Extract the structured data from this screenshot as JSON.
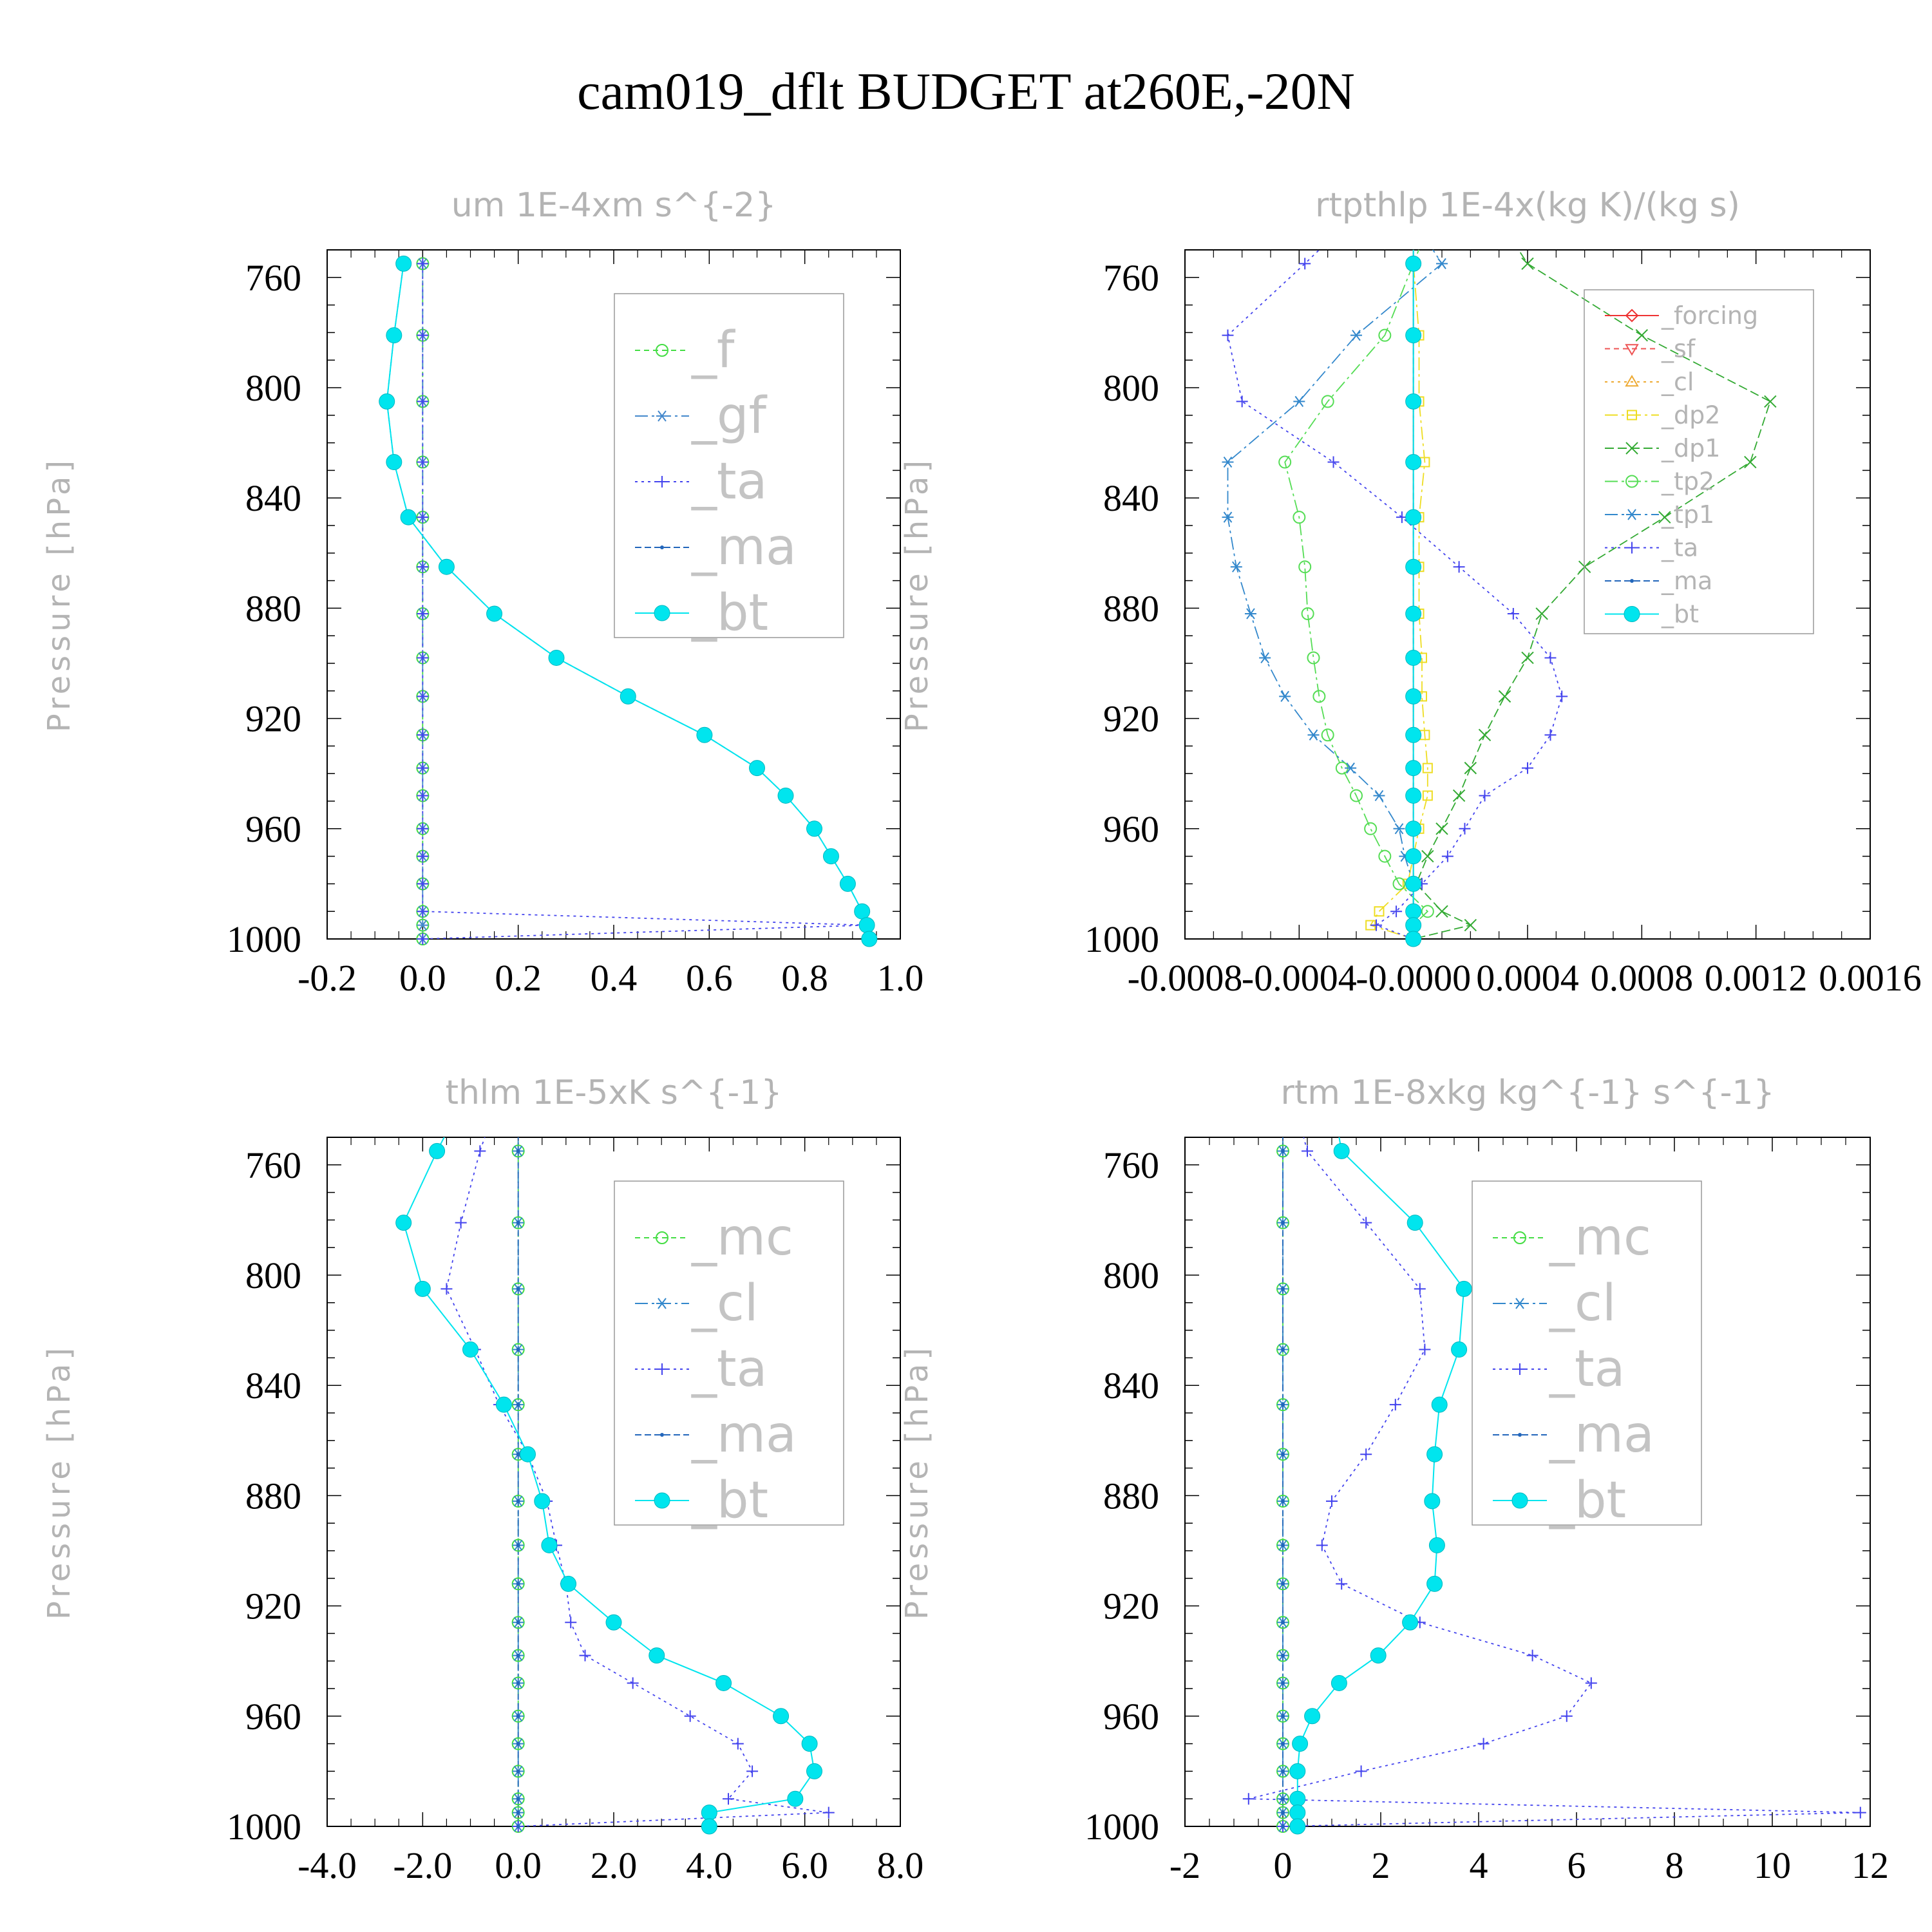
{
  "title": "cam019_dflt  BUDGET at260E,-20N",
  "chart_data": [
    {
      "type": "line",
      "title": "um   1E-4xm s^{-2}",
      "ylabel": "Pressure [hPa]",
      "xlim": [
        -0.2,
        1.0
      ],
      "ylim": [
        1000,
        750
      ],
      "xticks": [
        "-0.2",
        "0.0",
        "0.2",
        "0.4",
        "0.6",
        "0.8",
        "1.0"
      ],
      "xtick_values": [
        -0.2,
        0.0,
        0.2,
        0.4,
        0.6,
        0.8,
        1.0
      ],
      "yticks": [
        "760",
        "800",
        "840",
        "880",
        "920",
        "960",
        "1000"
      ],
      "ytick_values": [
        760,
        800,
        840,
        880,
        920,
        960,
        1000
      ],
      "legend_size": "large",
      "legend_entries": [
        "_f",
        "_gf",
        "_ta",
        "_ma",
        "_bt"
      ],
      "levels": [
        755,
        781,
        805,
        827,
        847,
        865,
        882,
        898,
        912,
        926,
        938,
        948,
        960,
        970,
        980,
        990,
        995,
        1000
      ],
      "series": [
        {
          "name": "_f",
          "color": "#44dd44",
          "dash": "8 6",
          "marker": "circle-open",
          "values": [
            0,
            0,
            0,
            0,
            0,
            0,
            0,
            0,
            0,
            0,
            0,
            0,
            0,
            0,
            0,
            0,
            0,
            0
          ]
        },
        {
          "name": "_gf",
          "color": "#4488cc",
          "dash": "20 6 4 6",
          "marker": "asterisk",
          "values": [
            0,
            0,
            0,
            0,
            0,
            0,
            0,
            0,
            0,
            0,
            0,
            0,
            0,
            0,
            0,
            0,
            0,
            0
          ]
        },
        {
          "name": "_ta",
          "color": "#4444ee",
          "dash": "4 6",
          "marker": "plus",
          "values": [
            0,
            0,
            0,
            0,
            0,
            0,
            0,
            0,
            0,
            0,
            0,
            0,
            0,
            0,
            0,
            0,
            0.93,
            0
          ]
        },
        {
          "name": "_ma",
          "color": "#2266bb",
          "dash": "10 5",
          "marker": "dot",
          "values": [
            -0.04,
            -0.06,
            -0.075,
            -0.06,
            -0.03,
            0.05,
            0.15,
            0.28,
            0.43,
            0.59,
            0.7,
            0.76,
            0.82,
            0.855,
            0.89,
            0.92,
            0.93,
            0.935
          ]
        },
        {
          "name": "_bt",
          "color": "#00e5ee",
          "dash": "",
          "marker": "filled",
          "values": [
            -0.04,
            -0.06,
            -0.075,
            -0.06,
            -0.03,
            0.05,
            0.15,
            0.28,
            0.43,
            0.59,
            0.7,
            0.76,
            0.82,
            0.855,
            0.89,
            0.92,
            0.93,
            0.935
          ]
        }
      ]
    },
    {
      "type": "line",
      "title": "rtpthlp   1E-4x(kg K)/(kg s)",
      "ylabel": "Pressure [hPa]",
      "xlim": [
        -0.0008,
        0.0016
      ],
      "ylim": [
        1000,
        750
      ],
      "xticks": [
        "-0.0008",
        "-0.0004",
        "-0.0000",
        "0.0004",
        "0.0008",
        "0.0012",
        "0.0016"
      ],
      "xtick_values": [
        -0.0008,
        -0.0004,
        0.0,
        0.0004,
        0.0008,
        0.0012,
        0.0016
      ],
      "yticks": [
        "760",
        "800",
        "840",
        "880",
        "920",
        "960",
        "1000"
      ],
      "ytick_values": [
        760,
        800,
        840,
        880,
        920,
        960,
        1000
      ],
      "legend_size": "small",
      "legend_entries": [
        "_forcing",
        "_sf",
        "_cl",
        "_dp2",
        "_dp1",
        "_tp2",
        "_tp1",
        "_ta",
        "_ma",
        "_bt"
      ],
      "levels": [
        747,
        755,
        781,
        805,
        827,
        847,
        865,
        882,
        898,
        912,
        926,
        938,
        948,
        960,
        970,
        980,
        990,
        995,
        1000
      ],
      "series": [
        {
          "name": "_forcing",
          "color": "#ee3333",
          "dash": "",
          "marker": "diamond",
          "values": [
            0,
            0,
            0,
            0,
            0,
            0,
            0,
            0,
            0,
            0,
            0,
            0,
            0,
            0,
            0,
            0,
            0,
            0,
            0
          ]
        },
        {
          "name": "_sf",
          "color": "#ee5555",
          "dash": "8 6",
          "marker": "triangle-down",
          "values": [
            0,
            0,
            0,
            0,
            0,
            0,
            0,
            0,
            0,
            0,
            0,
            0,
            0,
            0,
            0,
            0,
            0,
            0,
            0
          ]
        },
        {
          "name": "_cl",
          "color": "#eeaa33",
          "dash": "4 6",
          "marker": "triangle",
          "values": [
            0,
            0,
            0,
            0,
            0,
            0,
            0,
            0,
            0,
            0,
            0,
            0,
            0,
            0,
            0,
            0,
            0,
            0,
            0
          ]
        },
        {
          "name": "_dp2",
          "color": "#eedd22",
          "dash": "20 6 4 6",
          "marker": "square",
          "values": [
            0,
            0,
            2e-05,
            2e-05,
            4e-05,
            2e-05,
            2e-05,
            2e-05,
            3e-05,
            3e-05,
            4e-05,
            5e-05,
            5e-05,
            2e-05,
            0,
            -2e-05,
            -0.00012,
            -0.00015,
            0
          ]
        },
        {
          "name": "_dp1",
          "color": "#33aa33",
          "dash": "14 6",
          "marker": "x",
          "values": [
            0.00035,
            0.0004,
            0.0008,
            0.00125,
            0.00118,
            0.00088,
            0.0006,
            0.00045,
            0.0004,
            0.00032,
            0.00025,
            0.0002,
            0.00016,
            0.0001,
            5e-05,
            1e-05,
            0.0001,
            0.0002,
            0
          ]
        },
        {
          "name": "_tp2",
          "color": "#55dd55",
          "dash": "20 6 4 6",
          "marker": "circle-open",
          "values": [
            3e-05,
            0,
            -0.0001,
            -0.0003,
            -0.00045,
            -0.0004,
            -0.00038,
            -0.00037,
            -0.00035,
            -0.00033,
            -0.0003,
            -0.00025,
            -0.0002,
            -0.00015,
            -0.0001,
            -5e-05,
            5e-05,
            0,
            0
          ]
        },
        {
          "name": "_tp1",
          "color": "#3388cc",
          "dash": "20 6 4 6",
          "marker": "asterisk",
          "values": [
            5e-05,
            0.0001,
            -0.0002,
            -0.0004,
            -0.00065,
            -0.00065,
            -0.00062,
            -0.00057,
            -0.00052,
            -0.00045,
            -0.00035,
            -0.00022,
            -0.00012,
            -5e-05,
            -3e-05,
            0,
            0,
            0,
            0
          ]
        },
        {
          "name": "_ta",
          "color": "#4444ee",
          "dash": "4 6",
          "marker": "plus",
          "values": [
            -0.0003,
            -0.00038,
            -0.00065,
            -0.0006,
            -0.00028,
            -4e-05,
            0.00016,
            0.00035,
            0.00048,
            0.00052,
            0.00048,
            0.0004,
            0.00025,
            0.00018,
            0.00012,
            3e-05,
            -6e-05,
            -0.00013,
            0
          ]
        },
        {
          "name": "_ma",
          "color": "#2266bb",
          "dash": "10 5",
          "marker": "dot",
          "values": [
            0,
            0,
            0,
            0,
            0,
            0,
            0,
            0,
            0,
            0,
            0,
            0,
            0,
            0,
            0,
            0,
            0,
            0,
            0
          ]
        },
        {
          "name": "_bt",
          "color": "#00e5ee",
          "dash": "",
          "marker": "filled",
          "values": [
            0,
            0,
            0,
            0,
            0,
            0,
            0,
            0,
            0,
            0,
            0,
            0,
            0,
            0,
            0,
            0,
            0,
            0,
            0
          ]
        }
      ]
    },
    {
      "type": "line",
      "title": "thlm   1E-5xK s^{-1}",
      "ylabel": "Pressure [hPa]",
      "xlim": [
        -4.0,
        8.0
      ],
      "ylim": [
        1000,
        750
      ],
      "xticks": [
        "-4.0",
        "-2.0",
        "0.0",
        "2.0",
        "4.0",
        "6.0",
        "8.0"
      ],
      "xtick_values": [
        -4.0,
        -2.0,
        0.0,
        2.0,
        4.0,
        6.0,
        8.0
      ],
      "yticks": [
        "760",
        "800",
        "840",
        "880",
        "920",
        "960",
        "1000"
      ],
      "ytick_values": [
        760,
        800,
        840,
        880,
        920,
        960,
        1000
      ],
      "legend_size": "large",
      "legend_entries": [
        "_mc",
        "_cl",
        "_ta",
        "_ma",
        "_bt"
      ],
      "levels": [
        745,
        755,
        781,
        805,
        827,
        847,
        865,
        882,
        898,
        912,
        926,
        938,
        948,
        960,
        970,
        980,
        990,
        995,
        1000
      ],
      "series": [
        {
          "name": "_mc",
          "color": "#44dd44",
          "dash": "8 6",
          "marker": "circle-open",
          "values": [
            0,
            0,
            0,
            0,
            0,
            0,
            0,
            0,
            0,
            0,
            0,
            0,
            0,
            0,
            0,
            0,
            0,
            0,
            0
          ]
        },
        {
          "name": "_cl",
          "color": "#3388cc",
          "dash": "20 6 4 6",
          "marker": "asterisk",
          "values": [
            0,
            0,
            0,
            0,
            0,
            0,
            0,
            0,
            0,
            0,
            0,
            0,
            0,
            0,
            0,
            0,
            0,
            0,
            0
          ]
        },
        {
          "name": "_ta",
          "color": "#4444ee",
          "dash": "4 6",
          "marker": "plus",
          "values": [
            -0.6,
            -0.8,
            -1.2,
            -1.5,
            -0.9,
            -0.4,
            0.2,
            0.6,
            0.8,
            1.0,
            1.1,
            1.4,
            2.4,
            3.6,
            4.6,
            4.9,
            4.4,
            6.5,
            0
          ]
        },
        {
          "name": "_ma",
          "color": "#2266bb",
          "dash": "10 5",
          "marker": "dot",
          "values": [
            0,
            0,
            0,
            0,
            0,
            0,
            0,
            0,
            0,
            0,
            0,
            0,
            0,
            0,
            0,
            0,
            0,
            0,
            0
          ]
        },
        {
          "name": "_bt",
          "color": "#00e5ee",
          "dash": "",
          "marker": "filled",
          "values": [
            -1.4,
            -1.7,
            -2.4,
            -2.0,
            -1.0,
            -0.3,
            0.2,
            0.5,
            0.65,
            1.05,
            2.0,
            2.9,
            4.3,
            5.5,
            6.1,
            6.2,
            5.8,
            4.0,
            4.0
          ]
        }
      ]
    },
    {
      "type": "line",
      "title": "rtm   1E-8xkg kg^{-1} s^{-1}",
      "ylabel": "Pressure [hPa]",
      "xlim": [
        -2,
        12
      ],
      "ylim": [
        1000,
        750
      ],
      "xticks": [
        "-2",
        "0",
        "2",
        "4",
        "6",
        "8",
        "10",
        "12"
      ],
      "xtick_values": [
        -2,
        0,
        2,
        4,
        6,
        8,
        10,
        12
      ],
      "yticks": [
        "760",
        "800",
        "840",
        "880",
        "920",
        "960",
        "1000"
      ],
      "ytick_values": [
        760,
        800,
        840,
        880,
        920,
        960,
        1000
      ],
      "legend_size": "large",
      "legend_entries": [
        "_mc",
        "_cl",
        "_ta",
        "_ma",
        "_bt"
      ],
      "levels": [
        745,
        755,
        781,
        805,
        827,
        847,
        865,
        882,
        898,
        912,
        926,
        938,
        948,
        960,
        970,
        980,
        990,
        995,
        1000
      ],
      "series": [
        {
          "name": "_mc",
          "color": "#44dd44",
          "dash": "8 6",
          "marker": "circle-open",
          "values": [
            0,
            0,
            0,
            0,
            0,
            0,
            0,
            0,
            0,
            0,
            0,
            0,
            0,
            0,
            0,
            0,
            0,
            0,
            0
          ]
        },
        {
          "name": "_cl",
          "color": "#3388cc",
          "dash": "20 6 4 6",
          "marker": "asterisk",
          "values": [
            0,
            0,
            0,
            0,
            0,
            0,
            0,
            0,
            0,
            0,
            0,
            0,
            0,
            0,
            0,
            0,
            0,
            0,
            0
          ]
        },
        {
          "name": "_ta",
          "color": "#4444ee",
          "dash": "4 6",
          "marker": "plus",
          "values": [
            0.35,
            0.5,
            1.7,
            2.8,
            2.9,
            2.3,
            1.7,
            1.0,
            0.8,
            1.2,
            2.8,
            5.1,
            6.3,
            5.8,
            4.1,
            1.6,
            -0.7,
            11.8,
            0
          ]
        },
        {
          "name": "_ma",
          "color": "#2266bb",
          "dash": "10 5",
          "marker": "dot",
          "values": [
            0,
            0,
            0,
            0,
            0,
            0,
            0,
            0,
            0,
            0,
            0,
            0,
            0,
            0,
            0,
            0,
            0,
            0,
            0
          ]
        },
        {
          "name": "_bt",
          "color": "#00e5ee",
          "dash": "",
          "marker": "filled",
          "values": [
            1.1,
            1.2,
            2.7,
            3.7,
            3.6,
            3.2,
            3.1,
            3.05,
            3.15,
            3.1,
            2.6,
            1.95,
            1.15,
            0.6,
            0.35,
            0.3,
            0.3,
            0.3,
            0.3
          ]
        }
      ]
    }
  ]
}
